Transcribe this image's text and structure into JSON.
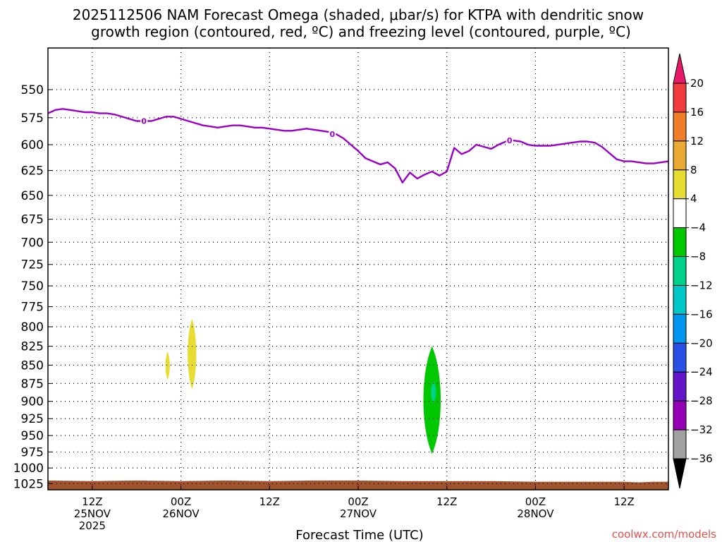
{
  "chart_data": {
    "type": "heatmap",
    "title_lines": [
      "2025112506 NAM Forecast Omega (shaded, μbar/s) for KTPA with dendritic snow",
      "growth region (contoured, red, ºC) and freezing level (contoured, purple, ºC)"
    ],
    "xlabel": "Forecast Time (UTC)",
    "credit": "coolwx.com/models",
    "x_range_hours": [
      0,
      84
    ],
    "x_ticks": [
      {
        "hour": 6,
        "lines": [
          "12Z",
          "25NOV",
          "2025"
        ]
      },
      {
        "hour": 18,
        "lines": [
          "00Z",
          "26NOV"
        ]
      },
      {
        "hour": 30,
        "lines": [
          "12Z"
        ]
      },
      {
        "hour": 42,
        "lines": [
          "00Z",
          "27NOV"
        ]
      },
      {
        "hour": 54,
        "lines": [
          "12Z"
        ]
      },
      {
        "hour": 66,
        "lines": [
          "00Z",
          "28NOV"
        ]
      },
      {
        "hour": 78,
        "lines": [
          "12Z"
        ]
      }
    ],
    "y_scale": "log-pressure",
    "y_range_hpa": [
      1035,
      515
    ],
    "y_ticks": [
      "550",
      "575",
      "600",
      "625",
      "650",
      "675",
      "700",
      "725",
      "750",
      "775",
      "800",
      "825",
      "850",
      "875",
      "900",
      "925",
      "950",
      "975",
      "1000",
      "1025"
    ],
    "colorbar": {
      "ticks": [
        "20",
        "16",
        "12",
        "8",
        "4",
        "-4",
        "-8",
        "-12",
        "-16",
        "-20",
        "-24",
        "-28",
        "-32",
        "-36"
      ],
      "colors": [
        "#e8196b",
        "#f03c3c",
        "#f07d28",
        "#e8aa32",
        "#e6dc32",
        "#ffffff",
        "#00c800",
        "#00d28c",
        "#00c8c8",
        "#0096f0",
        "#2850e6",
        "#6414c8",
        "#9600b4",
        "#a0a0a0",
        "#000000"
      ]
    },
    "freezing_level": {
      "color": "#9b00c7",
      "label": "0",
      "label_hours": [
        13,
        38.5,
        62.5
      ],
      "x": [
        0,
        1,
        2,
        3,
        4,
        5,
        6,
        7,
        8,
        9,
        10,
        11,
        12,
        13,
        14,
        15,
        16,
        17,
        18,
        19,
        20,
        21,
        22,
        23,
        24,
        25,
        26,
        27,
        28,
        29,
        30,
        31,
        32,
        33,
        34,
        35,
        36,
        37,
        38,
        39,
        40,
        41,
        42,
        43,
        44,
        45,
        46,
        47,
        48,
        49,
        50,
        51,
        52,
        53,
        54,
        55,
        56,
        57,
        58,
        59,
        60,
        61,
        62,
        63,
        64,
        65,
        66,
        67,
        68,
        69,
        70,
        71,
        72,
        73,
        74,
        75,
        76,
        77,
        78,
        79,
        80,
        81,
        82,
        83,
        84
      ],
      "y": [
        571,
        568,
        567,
        568,
        569,
        570,
        570,
        571,
        571,
        572,
        574,
        576,
        578,
        578,
        578,
        576,
        574,
        574,
        576,
        578,
        580,
        582,
        583,
        584,
        583,
        582,
        582,
        583,
        584,
        584,
        585,
        586,
        587,
        587,
        586,
        585,
        586,
        587,
        588,
        590,
        594,
        600,
        606,
        613,
        616,
        619,
        617,
        623,
        637,
        627,
        633,
        629,
        626,
        630,
        626,
        603,
        609,
        606,
        600,
        602,
        604,
        600,
        597,
        596,
        597,
        600,
        601,
        601,
        601,
        600,
        599,
        598,
        597,
        597,
        598,
        602,
        608,
        614,
        616,
        616,
        617,
        618,
        618,
        617,
        616
      ]
    },
    "omega_regions": [
      {
        "value_band": "4 to 8",
        "color": "#e6dc32",
        "center_hour": 19.5,
        "p_top_hpa": 790,
        "p_bottom_hpa": 883,
        "half_width_hours": 0.6
      },
      {
        "value_band": "4 to 8",
        "color": "#e6dc32",
        "center_hour": 16.2,
        "p_top_hpa": 832,
        "p_bottom_hpa": 870,
        "half_width_hours": 0.3
      },
      {
        "value_band": "-4 to -8",
        "color": "#00c800",
        "center_hour": 52.0,
        "p_top_hpa": 825,
        "p_bottom_hpa": 978,
        "half_width_hours": 1.2
      },
      {
        "value_band": "-8 to -12",
        "color": "#00d28c",
        "center_hour": 52.2,
        "p_top_hpa": 872,
        "p_bottom_hpa": 902,
        "half_width_hours": 0.35
      }
    ],
    "terrain": {
      "color": "#a0522d",
      "x": [
        0,
        6,
        12,
        18,
        24,
        30,
        36,
        42,
        48,
        54,
        60,
        66,
        72,
        78,
        80,
        82,
        84
      ],
      "top_hpa": [
        1020,
        1021,
        1020,
        1021,
        1020,
        1021,
        1020,
        1020,
        1021,
        1021,
        1021,
        1022,
        1022,
        1022,
        1023,
        1022,
        1022
      ]
    }
  }
}
